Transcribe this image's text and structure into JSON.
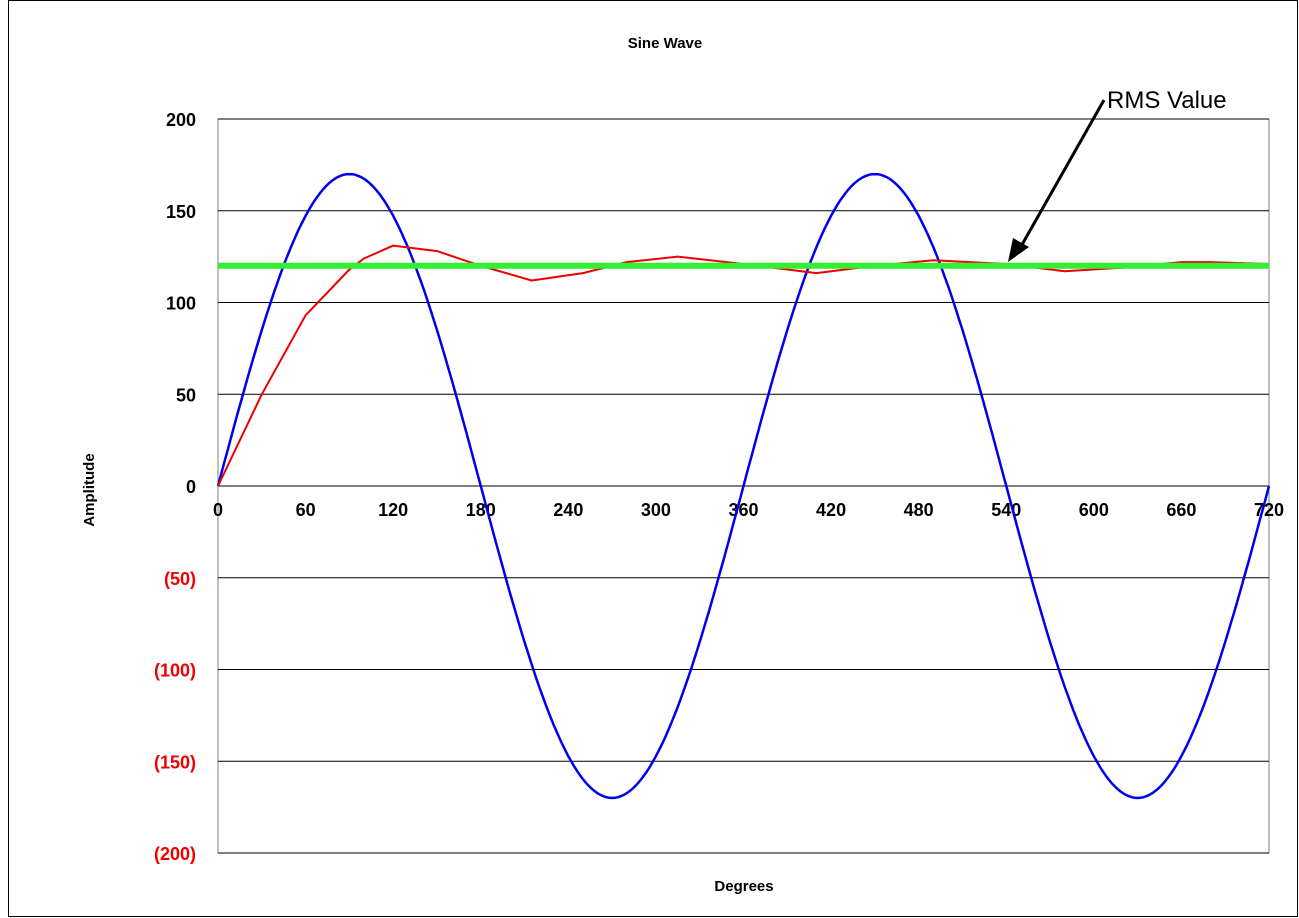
{
  "chart_data": {
    "type": "line",
    "title": "Sine Wave",
    "xlabel": "Degrees",
    "ylabel": "Amplitude",
    "xlim": [
      0,
      720
    ],
    "ylim": [
      -200,
      200
    ],
    "x_ticks": [
      0,
      60,
      120,
      180,
      240,
      300,
      360,
      420,
      480,
      540,
      600,
      660,
      720
    ],
    "x_tick_labels": [
      "0",
      "60",
      "120",
      "180",
      "240",
      "300",
      "360",
      "420",
      "480",
      "540",
      "600",
      "660",
      "720"
    ],
    "y_ticks": [
      200,
      150,
      100,
      50,
      0,
      -50,
      -100,
      -150,
      -200
    ],
    "y_tick_labels": [
      "200",
      "150",
      "100",
      "50",
      "0",
      "(50)",
      "(100)",
      "(150)",
      "(200)"
    ],
    "grid": true,
    "legend": "none",
    "series": [
      {
        "color": "#0000ee",
        "x": [
          0,
          30,
          60,
          90,
          120,
          150,
          180,
          210,
          240,
          270,
          300,
          330,
          360,
          390,
          420,
          450,
          480,
          510,
          540,
          570,
          600,
          630,
          660,
          690,
          720
        ],
        "y": [
          0,
          85,
          147,
          170,
          147,
          85,
          0,
          -85,
          -147,
          -170,
          -147,
          -85,
          0,
          85,
          147,
          170,
          147,
          85,
          0,
          -85,
          -147,
          -170,
          -147,
          -85,
          0
        ]
      },
      {
        "color": "#ee0000",
        "x": [
          0,
          30,
          60,
          90,
          100,
          120,
          150,
          180,
          215,
          250,
          280,
          315,
          360,
          410,
          450,
          490,
          540,
          580,
          620,
          660,
          680,
          720
        ],
        "y": [
          0,
          50,
          93,
          118,
          124,
          131,
          128,
          120,
          112,
          116,
          122,
          125,
          121,
          116,
          120,
          123,
          121,
          117,
          119,
          122,
          122,
          121
        ]
      },
      {
        "color": "#33ee33",
        "x": [
          0,
          720
        ],
        "y": [
          120,
          120
        ]
      }
    ],
    "annotations": [
      {
        "text": "RMS Value",
        "target_x": 540,
        "target_y": 120
      }
    ],
    "colors": {
      "negative_tick": "#ee0000",
      "positive_tick": "#000000"
    }
  }
}
